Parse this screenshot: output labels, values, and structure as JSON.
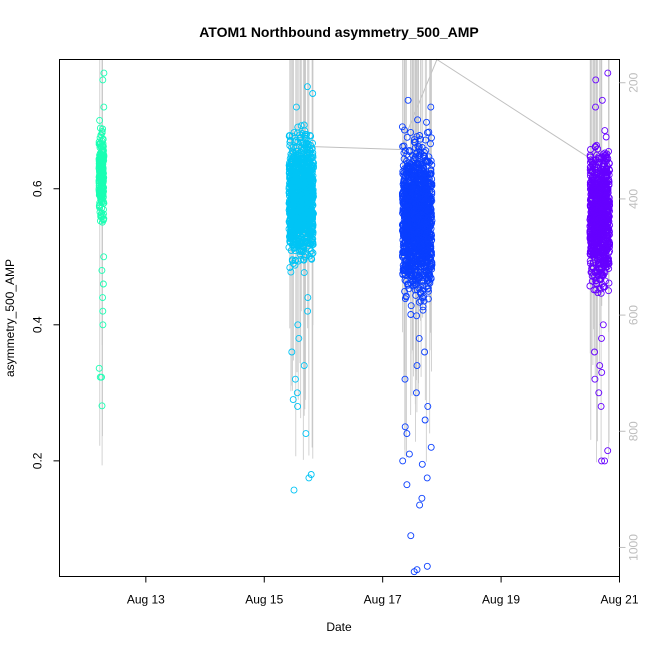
{
  "chart_data": {
    "type": "scatter",
    "title": "ATOM1 Northbound asymmetry_500_AMP",
    "xlabel": "Date",
    "ylabel": "asymmetry_500_AMP",
    "x_axis": {
      "type": "date",
      "xlim": [
        "2020-08-11T13:00",
        "2020-08-21T00:00"
      ],
      "ticks": [
        {
          "value": "2020-08-13",
          "label": "Aug 13"
        },
        {
          "value": "2020-08-15",
          "label": "Aug 15"
        },
        {
          "value": "2020-08-17",
          "label": "Aug 17"
        },
        {
          "value": "2020-08-19",
          "label": "Aug 19"
        },
        {
          "value": "2020-08-21",
          "label": "Aug 21"
        }
      ]
    },
    "y_axis": {
      "ylim": [
        0.03,
        0.79
      ],
      "ticks": [
        0.2,
        0.4,
        0.6
      ]
    },
    "secondary_y_axis": {
      "ylim": [
        1050,
        160
      ],
      "ticks": [
        200,
        400,
        600,
        800,
        1000
      ],
      "color": "#bdbdbd",
      "reversed": true
    },
    "grid": false,
    "legend": "none",
    "series": [
      {
        "color": "#1affb3",
        "date_range": [
          "2020-08-12T05:00",
          "2020-08-12T07:00"
        ],
        "bulk_range": [
          0.53,
          0.71
        ],
        "outliers": [
          0.77,
          0.76,
          0.72,
          0.5,
          0.48,
          0.46,
          0.44,
          0.42,
          0.4,
          0.336,
          0.323,
          0.323,
          0.281
        ]
      },
      {
        "color": "#00c4f5",
        "date_range": [
          "2020-08-15T10:00",
          "2020-08-15T20:00"
        ],
        "bulk_range": [
          0.46,
          0.71
        ],
        "outliers": [
          0.75,
          0.74,
          0.72,
          0.44,
          0.42,
          0.4,
          0.38,
          0.36,
          0.34,
          0.32,
          0.3,
          0.29,
          0.28,
          0.24,
          0.18,
          0.175,
          0.157
        ]
      },
      {
        "color": "#0a3fff",
        "date_range": [
          "2020-08-17T08:00",
          "2020-08-17T20:00"
        ],
        "bulk_range": [
          0.4,
          0.71
        ],
        "outliers": [
          0.73,
          0.72,
          0.38,
          0.36,
          0.34,
          0.32,
          0.3,
          0.28,
          0.26,
          0.25,
          0.24,
          0.22,
          0.21,
          0.2,
          0.195,
          0.175,
          0.165,
          0.145,
          0.135,
          0.09,
          0.045,
          0.04,
          0.037
        ]
      },
      {
        "color": "#6600ff",
        "date_range": [
          "2020-08-20T12:00",
          "2020-08-20T20:00"
        ],
        "bulk_range": [
          0.42,
          0.7
        ],
        "outliers": [
          0.77,
          0.76,
          0.73,
          0.72,
          0.4,
          0.38,
          0.36,
          0.34,
          0.33,
          0.32,
          0.3,
          0.28,
          0.215,
          0.2,
          0.2
        ]
      }
    ],
    "secondary_series": {
      "color": "#c0c0c0",
      "style": "line",
      "points": [
        {
          "x": "2020-08-15T20:00",
          "y": 310
        },
        {
          "x": "2020-08-17T07:00",
          "y": 315
        },
        {
          "x": "2020-08-17T22:00",
          "y": 160
        },
        {
          "x": "2020-08-20T12:00",
          "y": 330
        }
      ]
    }
  }
}
